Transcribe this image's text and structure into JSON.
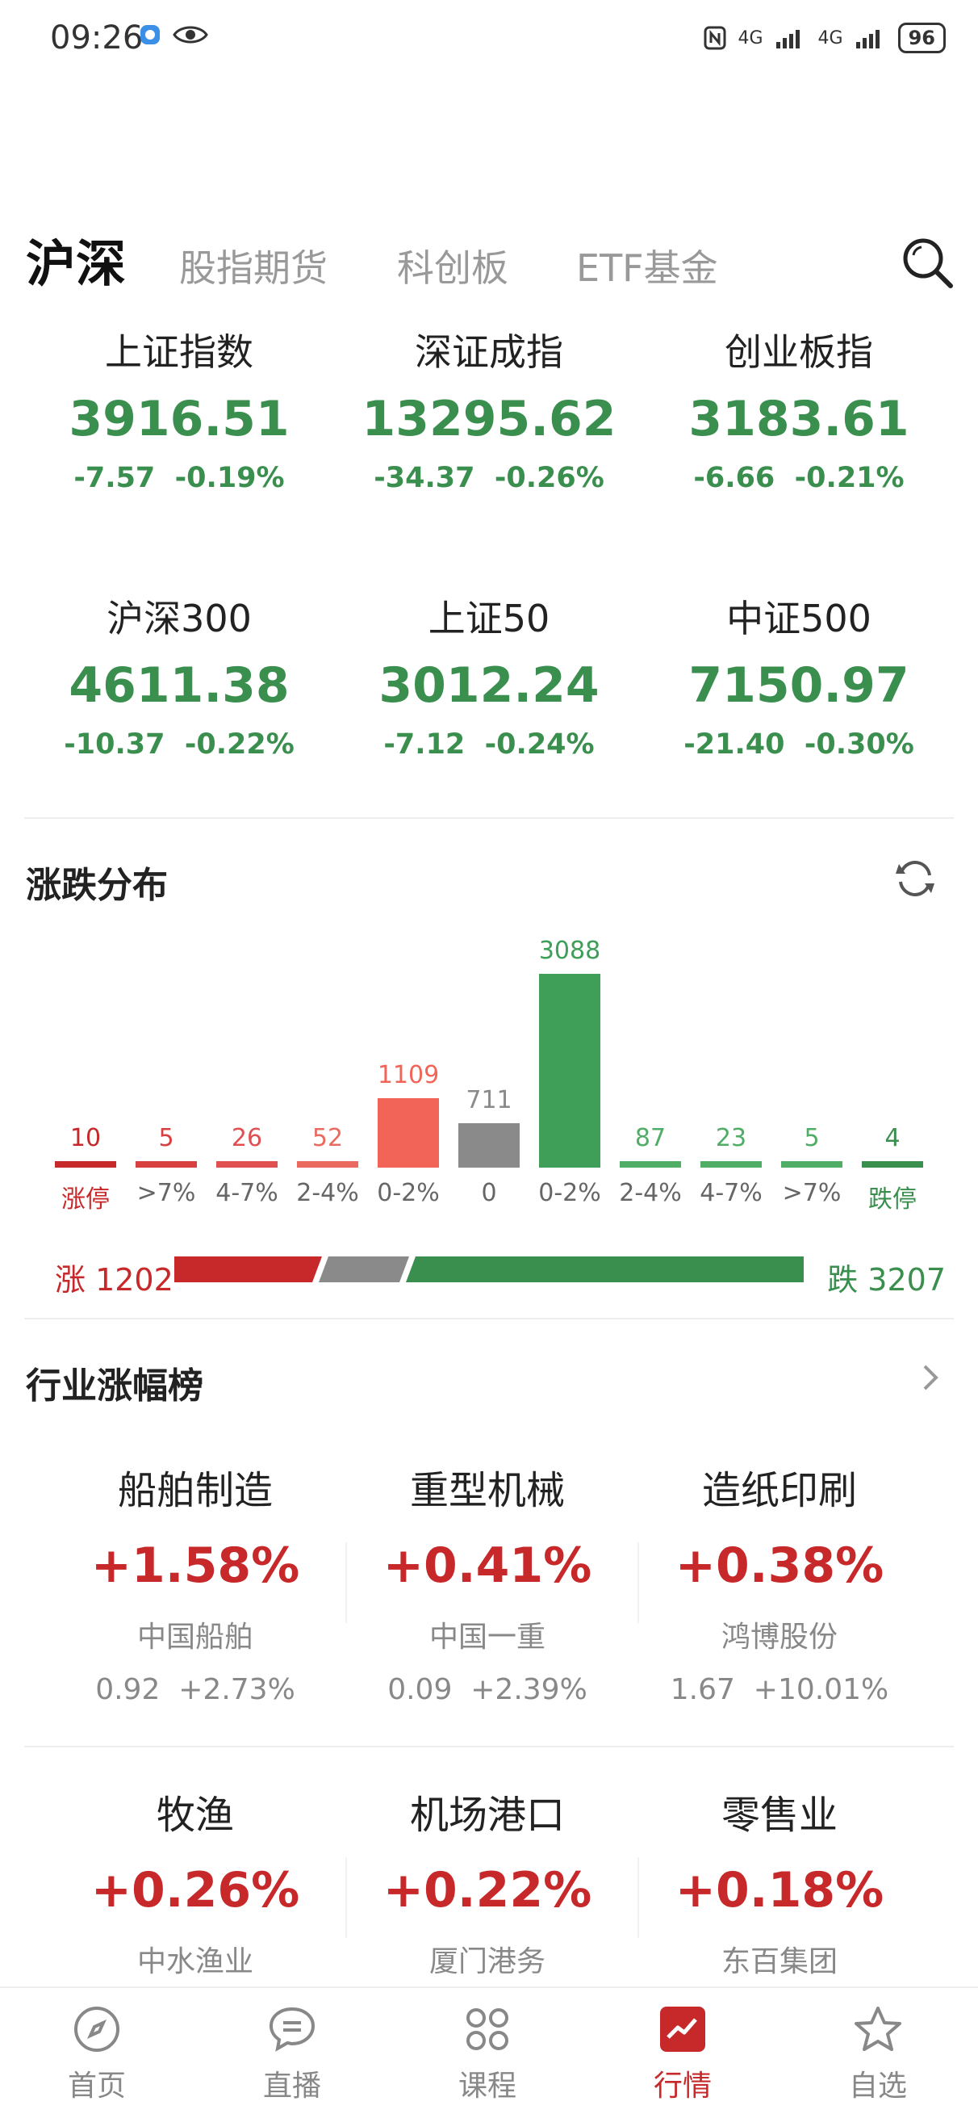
{
  "status": {
    "time": "09:26",
    "battery": "96",
    "net1": "4G",
    "net2": "4G"
  },
  "tabs": [
    {
      "label": "沪深",
      "active": true
    },
    {
      "label": "股指期货"
    },
    {
      "label": "科创板"
    },
    {
      "label": "ETF基金"
    }
  ],
  "indices": [
    {
      "name": "上证指数",
      "value": "3916.51",
      "change": "-7.57",
      "pct": "-0.19%"
    },
    {
      "name": "深证成指",
      "value": "13295.62",
      "change": "-34.37",
      "pct": "-0.26%"
    },
    {
      "name": "创业板指",
      "value": "3183.61",
      "change": "-6.66",
      "pct": "-0.21%"
    },
    {
      "name": "沪深300",
      "value": "4611.38",
      "change": "-10.37",
      "pct": "-0.22%"
    },
    {
      "name": "上证50",
      "value": "3012.24",
      "change": "-7.12",
      "pct": "-0.24%"
    },
    {
      "name": "中证500",
      "value": "7150.97",
      "change": "-21.40",
      "pct": "-0.30%"
    }
  ],
  "distribution": {
    "title": "涨跌分布",
    "up_label": "涨 1202",
    "down_label": "跌 3207"
  },
  "chart_data": {
    "type": "bar",
    "categories": [
      "涨停",
      ">7%",
      "4-7%",
      "2-4%",
      "0-2%",
      "0",
      "0-2%",
      "2-4%",
      "4-7%",
      ">7%",
      "跌停"
    ],
    "values": [
      10,
      5,
      26,
      52,
      1109,
      711,
      3088,
      87,
      23,
      5,
      4
    ],
    "value_labels": [
      "10",
      "5",
      "26",
      "52",
      "1109",
      "711",
      "3088",
      "87",
      "23",
      "5",
      "4"
    ],
    "colors": [
      "#c7282a",
      "#d84040",
      "#e05050",
      "#ea6a60",
      "#f26458",
      "#8a8a8a",
      "#3f9e58",
      "#4fad66",
      "#4fad66",
      "#4fad66",
      "#3a8f4f"
    ],
    "up_total": 1202,
    "flat_total": 711,
    "down_total": 3207
  },
  "industry": {
    "title": "行业涨幅榜",
    "items": [
      {
        "name": "船舶制造",
        "pct": "+1.58%",
        "stock": "中国船舶",
        "price": "0.92",
        "stock_pct": "+2.73%"
      },
      {
        "name": "重型机械",
        "pct": "+0.41%",
        "stock": "中国一重",
        "price": "0.09",
        "stock_pct": "+2.39%"
      },
      {
        "name": "造纸印刷",
        "pct": "+0.38%",
        "stock": "鸿博股份",
        "price": "1.67",
        "stock_pct": "+10.01%"
      },
      {
        "name": "牧渔",
        "pct": "+0.26%",
        "stock": "中水渔业"
      },
      {
        "name": "机场港口",
        "pct": "+0.22%",
        "stock": "厦门港务"
      },
      {
        "name": "零售业",
        "pct": "+0.18%",
        "stock": "东百集团"
      }
    ]
  },
  "bottom_nav": [
    {
      "label": "首页",
      "icon": "compass-icon"
    },
    {
      "label": "直播",
      "icon": "chat-icon"
    },
    {
      "label": "课程",
      "icon": "grid-icon"
    },
    {
      "label": "行情",
      "icon": "chart-icon",
      "active": true
    },
    {
      "label": "自选",
      "icon": "star-icon"
    }
  ],
  "colors": {
    "up": "#c7282a",
    "down": "#3a8f4f",
    "flat": "#8a8a8a"
  }
}
